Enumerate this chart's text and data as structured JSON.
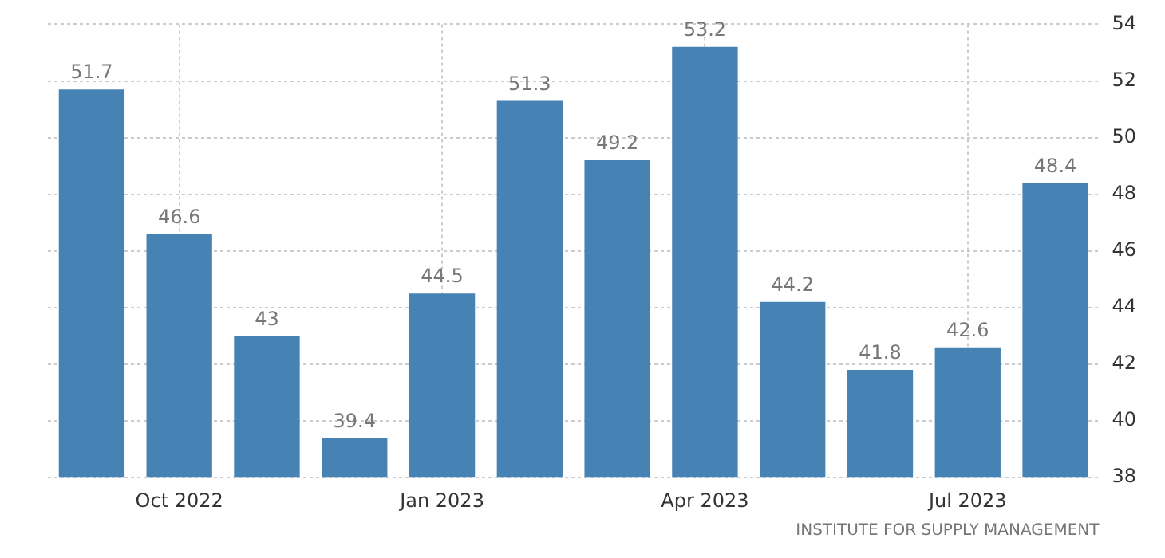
{
  "chart_data": {
    "type": "bar",
    "categories": [
      null,
      "Oct 2022",
      null,
      null,
      "Jan 2023",
      null,
      null,
      "Apr 2023",
      null,
      null,
      "Jul 2023",
      null
    ],
    "values": [
      51.7,
      46.6,
      43,
      39.4,
      44.5,
      51.3,
      49.2,
      53.2,
      44.2,
      41.8,
      42.6,
      48.4
    ],
    "color": "#4682b4",
    "ylim": [
      38,
      54
    ],
    "yticks": [
      38,
      40,
      42,
      44,
      46,
      48,
      50,
      52,
      54
    ],
    "grid": true,
    "data_labels": true,
    "annotations": [
      "INSTITUTE FOR SUPPLY MANAGEMENT"
    ]
  }
}
